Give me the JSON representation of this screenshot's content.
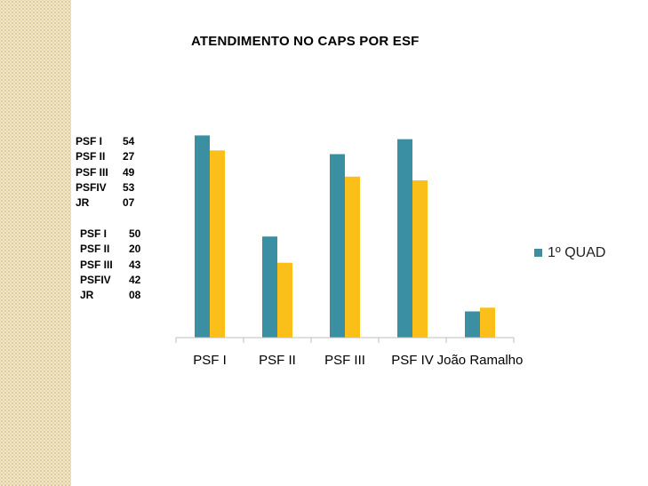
{
  "title": "ATENDIMENTO NO CAPS POR ESF",
  "stats_left": {
    "block_a": [
      {
        "label": "PSF I",
        "value": "54"
      },
      {
        "label": "PSF II",
        "value": "27"
      },
      {
        "label": "PSF III",
        "value": "49"
      },
      {
        "label": "PSFIV",
        "value": "53"
      },
      {
        "label": "JR",
        "value": "07"
      }
    ],
    "block_b": [
      {
        "label": "PSF I",
        "value": "50"
      },
      {
        "label": "PSF II",
        "value": "20"
      },
      {
        "label": "PSF III",
        "value": "43"
      },
      {
        "label": "PSFIV",
        "value": "42"
      },
      {
        "label": "JR",
        "value": "08"
      }
    ]
  },
  "chart_data": {
    "type": "bar",
    "title": "ATENDIMENTO NO CAPS POR ESF",
    "categories": [
      "PSF I",
      "PSF II",
      "PSF III",
      "PSF IV",
      "João Ramalho"
    ],
    "series": [
      {
        "name": "1º QUAD",
        "values": [
          54,
          27,
          49,
          53,
          7
        ],
        "color": "#3a8fa3"
      },
      {
        "values": [
          50,
          20,
          43,
          42,
          8
        ],
        "color": "#fbbf1a"
      }
    ],
    "ylim": [
      0,
      56
    ],
    "grid": false,
    "legend": "right",
    "xlabel": "",
    "ylabel": ""
  }
}
